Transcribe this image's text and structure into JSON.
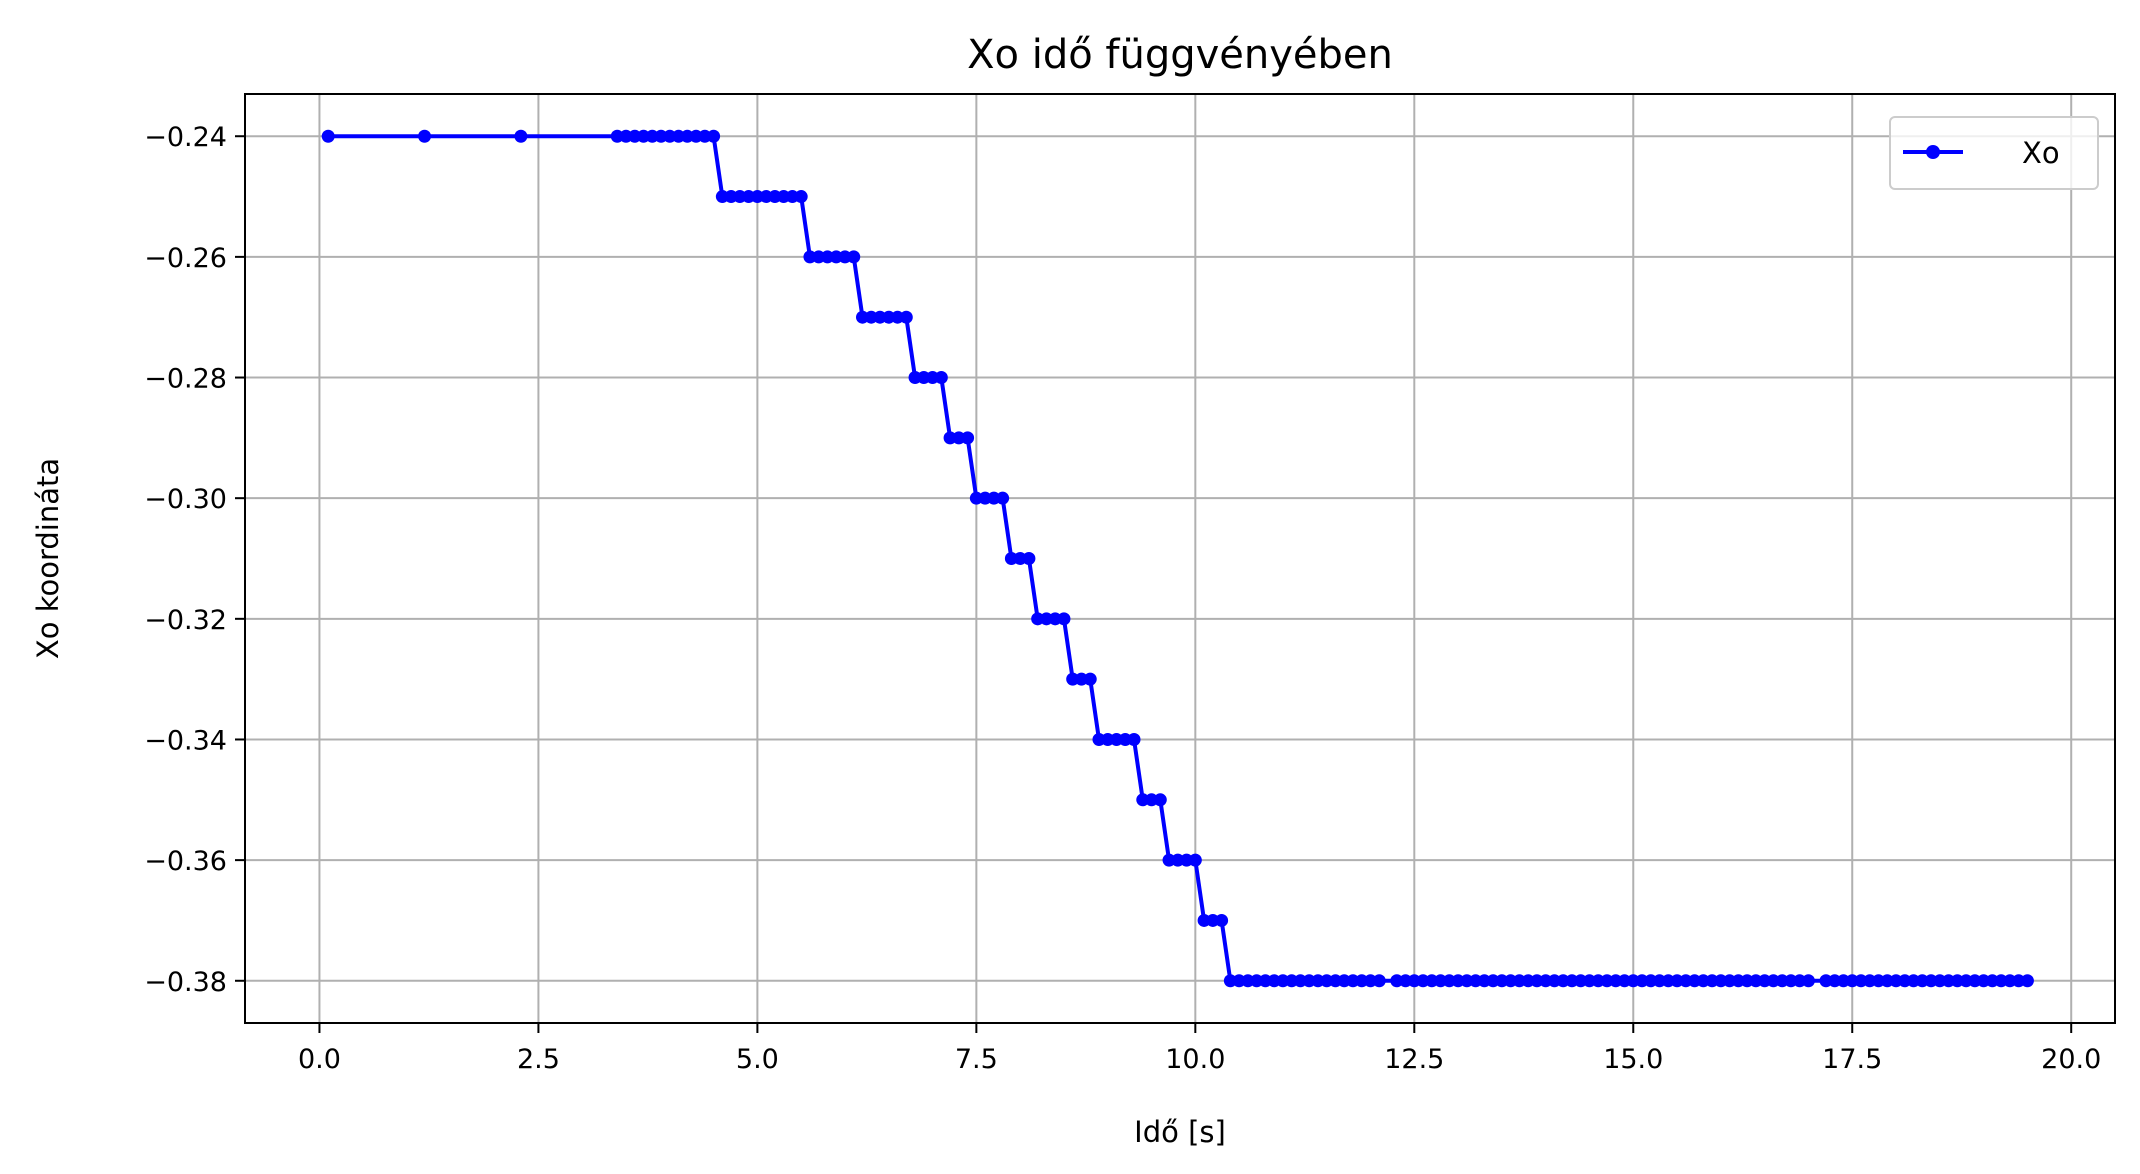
{
  "chart_data": {
    "type": "line",
    "title": "Xo idő függvényében",
    "xlabel": "Idő [s]",
    "ylabel": "Xo koordináta",
    "xlim": [
      -0.85,
      20.5
    ],
    "ylim": [
      -0.387,
      -0.233
    ],
    "xticks": [
      0.0,
      2.5,
      5.0,
      7.5,
      10.0,
      12.5,
      15.0,
      17.5,
      20.0
    ],
    "xtick_labels": [
      "0.0",
      "2.5",
      "5.0",
      "7.5",
      "10.0",
      "12.5",
      "15.0",
      "17.5",
      "20.0"
    ],
    "yticks": [
      -0.24,
      -0.26,
      -0.28,
      -0.3,
      -0.32,
      -0.34,
      -0.36,
      -0.38
    ],
    "ytick_labels": [
      "−0.24",
      "−0.26",
      "−0.28",
      "−0.30",
      "−0.32",
      "−0.34",
      "−0.36",
      "−0.38"
    ],
    "grid": true,
    "legend_position": "top-right",
    "series": [
      {
        "name": "Xo",
        "color": "#0000ff",
        "marker": "dot",
        "x": [
          0.1,
          1.2,
          2.3,
          3.4,
          3.5,
          3.6,
          3.7,
          3.8,
          3.9,
          4.0,
          4.1,
          4.2,
          4.3,
          4.4,
          4.5,
          4.6,
          4.7,
          4.8,
          4.9,
          5.0,
          5.1,
          5.2,
          5.3,
          5.4,
          5.5,
          5.6,
          5.7,
          5.8,
          5.9,
          6.0,
          6.1,
          6.2,
          6.3,
          6.4,
          6.5,
          6.6,
          6.7,
          6.8,
          6.9,
          7.0,
          7.1,
          7.2,
          7.3,
          7.4,
          7.5,
          7.6,
          7.7,
          7.8,
          7.9,
          8.0,
          8.1,
          8.2,
          8.3,
          8.4,
          8.5,
          8.6,
          8.7,
          8.8,
          8.9,
          9.0,
          9.1,
          9.2,
          9.3,
          9.4,
          9.5,
          9.6,
          9.7,
          9.8,
          9.9,
          10.0,
          10.1,
          10.2,
          10.3,
          10.4,
          10.5,
          10.6,
          10.7,
          10.8,
          10.9,
          11.0,
          11.1,
          11.2,
          11.3,
          11.4,
          11.5,
          11.6,
          11.7,
          11.8,
          11.9,
          12.0,
          12.1,
          12.3,
          12.4,
          12.5,
          12.6,
          12.7,
          12.8,
          12.9,
          13.0,
          13.1,
          13.2,
          13.3,
          13.4,
          13.5,
          13.6,
          13.7,
          13.8,
          13.9,
          14.0,
          14.1,
          14.2,
          14.3,
          14.4,
          14.5,
          14.6,
          14.7,
          14.8,
          14.9,
          15.0,
          15.1,
          15.2,
          15.3,
          15.4,
          15.5,
          15.6,
          15.7,
          15.8,
          15.9,
          16.0,
          16.1,
          16.2,
          16.3,
          16.4,
          16.5,
          16.6,
          16.7,
          16.8,
          16.9,
          17.0,
          17.2,
          17.3,
          17.4,
          17.5,
          17.6,
          17.7,
          17.8,
          17.9,
          18.0,
          18.1,
          18.2,
          18.3,
          18.4,
          18.5,
          18.6,
          18.7,
          18.8,
          18.9,
          19.0,
          19.1,
          19.2,
          19.3,
          19.4,
          19.5
        ],
        "y": [
          -0.24,
          -0.24,
          -0.24,
          -0.24,
          -0.24,
          -0.24,
          -0.24,
          -0.24,
          -0.24,
          -0.24,
          -0.24,
          -0.24,
          -0.24,
          -0.24,
          -0.24,
          -0.25,
          -0.25,
          -0.25,
          -0.25,
          -0.25,
          -0.25,
          -0.25,
          -0.25,
          -0.25,
          -0.25,
          -0.26,
          -0.26,
          -0.26,
          -0.26,
          -0.26,
          -0.26,
          -0.27,
          -0.27,
          -0.27,
          -0.27,
          -0.27,
          -0.27,
          -0.28,
          -0.28,
          -0.28,
          -0.28,
          -0.29,
          -0.29,
          -0.29,
          -0.3,
          -0.3,
          -0.3,
          -0.3,
          -0.31,
          -0.31,
          -0.31,
          -0.32,
          -0.32,
          -0.32,
          -0.32,
          -0.33,
          -0.33,
          -0.33,
          -0.34,
          -0.34,
          -0.34,
          -0.34,
          -0.34,
          -0.35,
          -0.35,
          -0.35,
          -0.36,
          -0.36,
          -0.36,
          -0.36,
          -0.37,
          -0.37,
          -0.37,
          -0.38,
          -0.38,
          -0.38,
          -0.38,
          -0.38,
          -0.38,
          -0.38,
          -0.38,
          -0.38,
          -0.38,
          -0.38,
          -0.38,
          -0.38,
          -0.38,
          -0.38,
          -0.38,
          -0.38,
          -0.38,
          -0.38,
          -0.38,
          -0.38,
          -0.38,
          -0.38,
          -0.38,
          -0.38,
          -0.38,
          -0.38,
          -0.38,
          -0.38,
          -0.38,
          -0.38,
          -0.38,
          -0.38,
          -0.38,
          -0.38,
          -0.38,
          -0.38,
          -0.38,
          -0.38,
          -0.38,
          -0.38,
          -0.38,
          -0.38,
          -0.38,
          -0.38,
          -0.38,
          -0.38,
          -0.38,
          -0.38,
          -0.38,
          -0.38,
          -0.38,
          -0.38,
          -0.38,
          -0.38,
          -0.38,
          -0.38,
          -0.38,
          -0.38,
          -0.38,
          -0.38,
          -0.38,
          -0.38,
          -0.38,
          -0.38,
          -0.38,
          -0.38,
          -0.38,
          -0.38,
          -0.38,
          -0.38,
          -0.38,
          -0.38,
          -0.38,
          -0.38,
          -0.38,
          -0.38,
          -0.38,
          -0.38,
          -0.38,
          -0.38,
          -0.38,
          -0.38,
          -0.38,
          -0.38,
          -0.38,
          -0.38,
          -0.38,
          -0.38,
          -0.38
        ]
      }
    ]
  }
}
